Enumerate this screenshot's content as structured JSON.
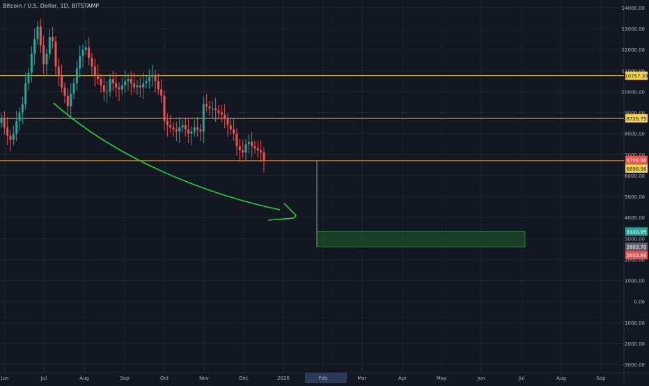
{
  "title": "Bitcoin / U.S. Dollar, 1D, BITSTAMP",
  "colors": {
    "background": "#131722",
    "grid": "#1f2433",
    "axis_text": "#b2b5be",
    "up": "#26a69a",
    "down": "#ef5350",
    "hline": "#f6d44a",
    "current_line": "#f59d2a",
    "arrow": "#1ee036",
    "zone_fill": "#1d4a2b",
    "zone_border": "#2e7d3a"
  },
  "chart_data": {
    "type": "candlestick",
    "y_ticks": [
      "14000.00",
      "13000.00",
      "12000.00",
      "11000.00",
      "10000.00",
      "9000.00",
      "8000.00",
      "7000.00",
      "6000.00",
      "5000.00",
      "4000.00",
      "3000.00",
      "2000.00",
      "1000.00",
      "0.00",
      "-1000.00",
      "-2000.00",
      "-3000.00"
    ],
    "x_ticks": [
      "Jun",
      "Jul",
      "Aug",
      "Sep",
      "Oct",
      "Nov",
      "Dec",
      "2020",
      "Feb",
      "Mar",
      "Apr",
      "May",
      "Jun",
      "Jul",
      "Aug",
      "Sep"
    ],
    "highlighted_x_tick": "Feb",
    "ylim": [
      -3000,
      14000
    ],
    "horizontal_levels": [
      {
        "label": "10757.33",
        "value": 10757.33,
        "color": "#f6d44a",
        "label_bg": "#f6d44a",
        "label_fg": "#131722"
      },
      {
        "label": "8728.75",
        "value": 8728.75,
        "color": "#f6d44a",
        "label_bg": "#f6d44a",
        "label_fg": "#131722"
      },
      {
        "label": "6704.98",
        "value": 6704.98,
        "color": "#f59d2a",
        "label_bg": "#ef5350",
        "label_fg": "#ffffff"
      },
      {
        "label": "6698.98",
        "value": 6698.98,
        "color": "#f59d2a",
        "label_bg": "#f6d44a",
        "label_fg": "#131722"
      }
    ],
    "zone": {
      "top_label": "3330.95",
      "top_value": 3330.95,
      "bottom_label": "2603.70",
      "bottom_value": 2603.7,
      "extra_label": "2603.69",
      "extra_value": 2603.69
    },
    "closes": [
      8700,
      8300,
      7900,
      7700,
      8000,
      8600,
      9000,
      9400,
      10400,
      10900,
      11800,
      12500,
      13100,
      12200,
      11300,
      11800,
      12600,
      12400,
      11200,
      10800,
      10200,
      9800,
      9300,
      9900,
      10400,
      11100,
      11700,
      12000,
      12100,
      11600,
      11200,
      10800,
      10600,
      10300,
      10000,
      10000,
      10600,
      10400,
      10200,
      10100,
      10300,
      10500,
      10600,
      10400,
      10200,
      10300,
      10200,
      10400,
      10500,
      10700,
      10800,
      10500,
      10100,
      9800,
      8600,
      8400,
      8300,
      8200,
      8100,
      8300,
      8400,
      8200,
      8000,
      8100,
      8300,
      8200,
      8100,
      9400,
      9300,
      9200,
      9200,
      9100,
      9000,
      8900,
      8700,
      8400,
      8200,
      8000,
      7400,
      7200,
      7100,
      7500,
      7600,
      7400,
      7300,
      7200,
      7100,
      6700
    ]
  }
}
